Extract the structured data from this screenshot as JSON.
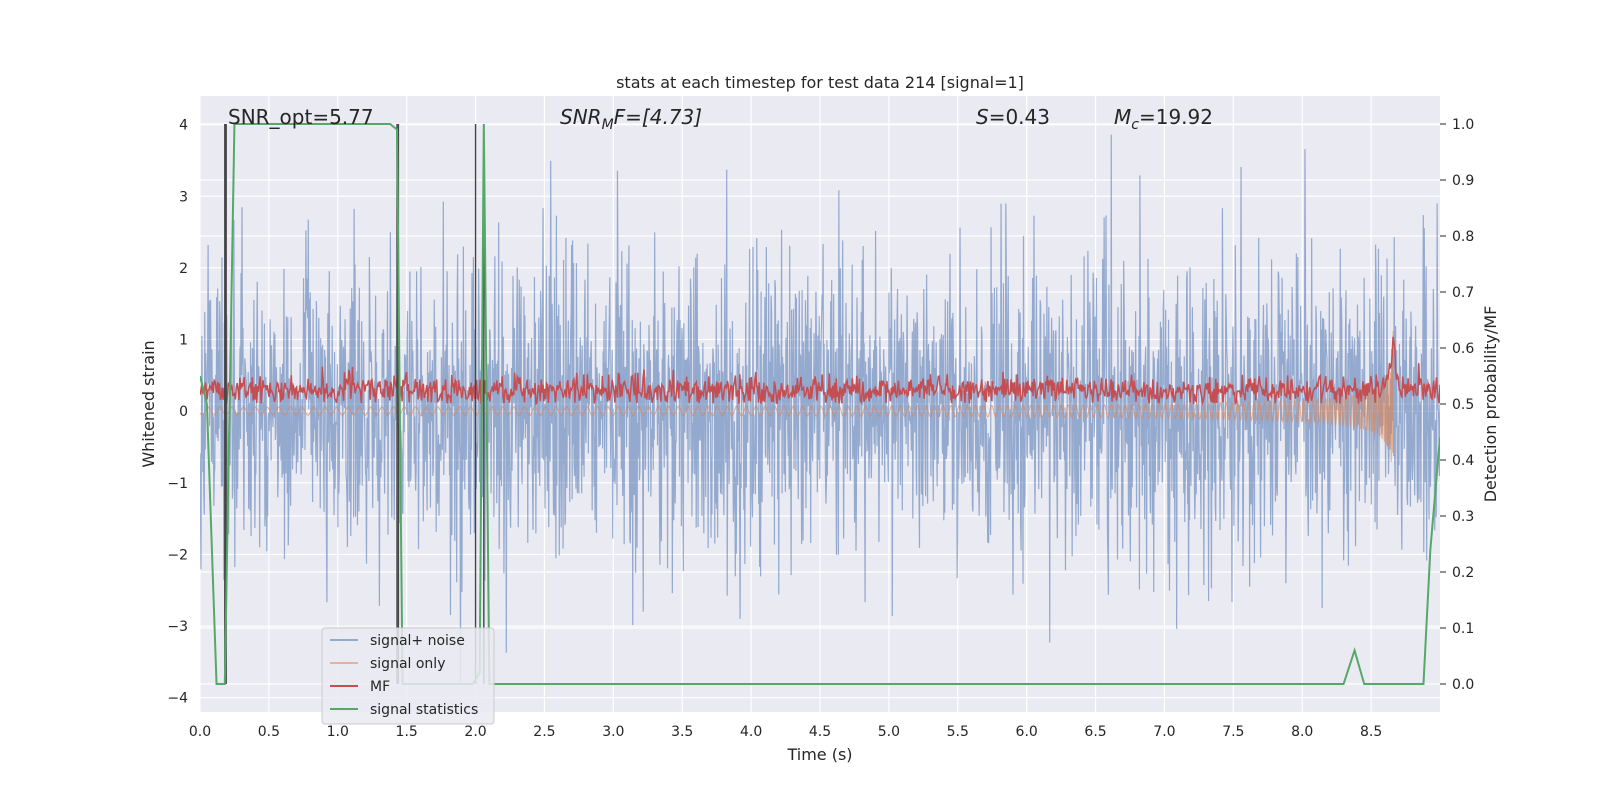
{
  "chart_data": {
    "type": "line",
    "title": "stats at each timestep for test data 214 [signal=1]",
    "xlabel": "Time (s)",
    "ylabel": "Whitened strain",
    "y2label": "Detection probability/MF",
    "xlim": [
      0,
      9.0
    ],
    "ylim": [
      -4.2,
      4.4
    ],
    "y2lim": [
      -0.05,
      1.05
    ],
    "xticks": [
      0.0,
      0.5,
      1.0,
      1.5,
      2.0,
      2.5,
      3.0,
      3.5,
      4.0,
      4.5,
      5.0,
      5.5,
      6.0,
      6.5,
      7.0,
      7.5,
      8.0,
      8.5
    ],
    "xtick_labels": [
      "0.0",
      "0.5",
      "1.0",
      "1.5",
      "2.0",
      "2.5",
      "3.0",
      "3.5",
      "4.0",
      "4.5",
      "5.0",
      "5.5",
      "6.0",
      "6.5",
      "7.0",
      "7.5",
      "8.0",
      "8.5"
    ],
    "yticks": [
      -4,
      -3,
      -2,
      -1,
      0,
      1,
      2,
      3,
      4
    ],
    "ytick_labels": [
      "−4",
      "−3",
      "−2",
      "−1",
      "0",
      "1",
      "2",
      "3",
      "4"
    ],
    "y2ticks": [
      0.0,
      0.1,
      0.2,
      0.3,
      0.4,
      0.5,
      0.6,
      0.7,
      0.8,
      0.9,
      1.0
    ],
    "y2tick_labels": [
      "0.0",
      "0.1",
      "0.2",
      "0.3",
      "0.4",
      "0.5",
      "0.6",
      "0.7",
      "0.8",
      "0.9",
      "1.0"
    ],
    "grid": true,
    "legend_position": "lower-left",
    "annotations": {
      "snr_opt": "SNR_opt=5.77",
      "snr_mf_base": "SNR",
      "snr_mf_sub": "M",
      "snr_mf_rest": "F=[4.73]",
      "s_base": "S",
      "s_rest": "=0.43",
      "mc_base": "M",
      "mc_sub": "c",
      "mc_rest": "=19.92"
    },
    "series": [
      {
        "name": "signal+ noise",
        "color": "#4c72b0",
        "axis": "left",
        "kind": "noise",
        "x_range": [
          0,
          9.0
        ],
        "amplitude_std": 1.0,
        "peak_min": -3.85,
        "peak_max": 4.0
      },
      {
        "name": "signal only",
        "color": "#dd8452",
        "axis": "left",
        "kind": "chirp",
        "x_range": [
          0,
          8.66
        ],
        "end_amplitude": 1.1,
        "merger_time": 8.66
      },
      {
        "name": "MF",
        "color": "#c44e52",
        "axis": "right",
        "kind": "mf",
        "x_range": [
          0,
          9.0
        ],
        "base": 0.525,
        "peak_time": 8.66,
        "peak_value": 0.6
      },
      {
        "name": "signal statistics",
        "color": "#55a868",
        "axis": "right",
        "x": [
          0.0,
          0.05,
          0.12,
          0.18,
          0.25,
          0.35,
          1.0,
          1.38,
          1.43,
          1.47,
          1.52,
          1.98,
          2.03,
          2.06,
          2.1,
          2.15,
          8.3,
          8.38,
          8.45,
          8.88,
          8.93,
          9.0
        ],
        "y": [
          0.55,
          0.5,
          0.0,
          0.0,
          1.0,
          1.0,
          1.0,
          1.0,
          0.99,
          0.0,
          0.0,
          0.0,
          0.02,
          1.0,
          0.0,
          0.0,
          0.0,
          0.06,
          0.0,
          0.0,
          0.24,
          0.44
        ]
      }
    ],
    "vlines": [
      0.18,
      0.19,
      1.43,
      1.44,
      2.0,
      2.06
    ]
  }
}
